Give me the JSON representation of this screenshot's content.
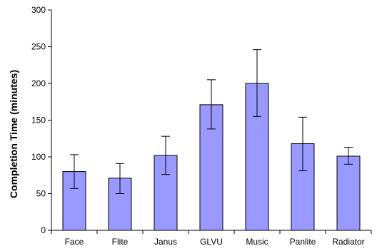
{
  "chart_data": {
    "type": "bar",
    "title": "",
    "xlabel": "",
    "ylabel": "Completion Time (minutes)",
    "ylim": [
      0,
      300
    ],
    "yticks": [
      0,
      50,
      100,
      150,
      200,
      250,
      300
    ],
    "grid": false,
    "categories": [
      "Face",
      "Flite",
      "Janus",
      "GLVU",
      "Music",
      "Panlite",
      "Radiator"
    ],
    "values": [
      80,
      71,
      102,
      171,
      200,
      118,
      101
    ],
    "error_low": [
      57,
      50,
      76,
      138,
      155,
      81,
      90
    ],
    "error_high": [
      103,
      91,
      128,
      205,
      246,
      154,
      113
    ],
    "bar_color": "#9999ff",
    "bar_edge_color": "#000000"
  }
}
